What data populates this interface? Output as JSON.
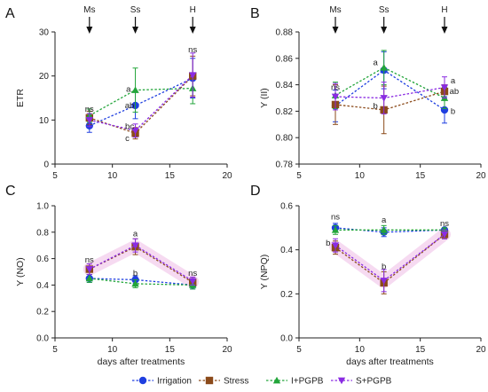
{
  "colors": {
    "Irrigation": "#1f3fe0",
    "Stress": "#8b4a1a",
    "I+PGPB": "#22a53a",
    "S+PGPB": "#8a2be2",
    "highlight": "#f5d3ee"
  },
  "legend": [
    "Irrigation",
    "Stress",
    "I+PGPB",
    "S+PGPB"
  ],
  "xlabel": "days after treatments",
  "chart_data": [
    {
      "type": "line",
      "panel": "A",
      "ylabel": "ETR",
      "xlim": [
        5,
        20
      ],
      "ylim": [
        0,
        30
      ],
      "xticks": [
        "5",
        "10",
        "15",
        "20"
      ],
      "yticks": [
        "0",
        "10",
        "20",
        "30"
      ],
      "x": [
        8,
        12,
        17
      ],
      "stage_labels": [
        {
          "x": 8,
          "text": "Ms"
        },
        {
          "x": 12,
          "text": "Ss"
        },
        {
          "x": 17,
          "text": "H"
        }
      ],
      "series": [
        {
          "name": "Irrigation",
          "values": [
            8.7,
            13.3,
            19.5
          ],
          "errors": [
            1.5,
            3.0,
            4.5
          ]
        },
        {
          "name": "Stress",
          "values": [
            10.5,
            7.0,
            20.0
          ],
          "errors": [
            1.5,
            1.3,
            4.5
          ]
        },
        {
          "name": "I+PGPB",
          "values": [
            11.0,
            16.8,
            17.2
          ],
          "errors": [
            1.5,
            5.0,
            3.5
          ]
        },
        {
          "name": "S+PGPB",
          "values": [
            10.0,
            7.6,
            20.2
          ],
          "errors": [
            1.5,
            1.5,
            5.0
          ]
        }
      ],
      "annotations": [
        {
          "x": 8,
          "y": 12.5,
          "text": "ns"
        },
        {
          "x": 11.4,
          "y": 17.0,
          "text": "a"
        },
        {
          "x": 11.5,
          "y": 13.3,
          "text": "ab"
        },
        {
          "x": 11.5,
          "y": 8.6,
          "text": "bc"
        },
        {
          "x": 11.3,
          "y": 5.8,
          "text": "c"
        },
        {
          "x": 17,
          "y": 26.0,
          "text": "ns"
        }
      ]
    },
    {
      "type": "line",
      "panel": "B",
      "ylabel": "Y (II)",
      "xlim": [
        5,
        20
      ],
      "ylim": [
        0.78,
        0.88
      ],
      "xticks": [
        "5",
        "10",
        "15",
        "20"
      ],
      "yticks": [
        "0.78",
        "0.80",
        "0.82",
        "0.84",
        "0.86",
        "0.88"
      ],
      "x": [
        8,
        12,
        17
      ],
      "stage_labels": [
        {
          "x": 8,
          "text": "Ms"
        },
        {
          "x": 12,
          "text": "Ss"
        },
        {
          "x": 17,
          "text": "H"
        }
      ],
      "series": [
        {
          "name": "Irrigation",
          "values": [
            0.824,
            0.851,
            0.821
          ],
          "errors": [
            0.012,
            0.014,
            0.01
          ]
        },
        {
          "name": "Stress",
          "values": [
            0.825,
            0.821,
            0.835
          ],
          "errors": [
            0.015,
            0.018,
            0.005
          ]
        },
        {
          "name": "I+PGPB",
          "values": [
            0.832,
            0.853,
            0.83
          ],
          "errors": [
            0.01,
            0.013,
            0.008
          ]
        },
        {
          "name": "S+PGPB",
          "values": [
            0.831,
            0.83,
            0.838
          ],
          "errors": [
            0.01,
            0.012,
            0.008
          ]
        }
      ],
      "annotations": [
        {
          "x": 8,
          "y": 0.838,
          "text": "ns"
        },
        {
          "x": 11.3,
          "y": 0.857,
          "text": "a"
        },
        {
          "x": 11.3,
          "y": 0.824,
          "text": "b"
        },
        {
          "x": 17.7,
          "y": 0.843,
          "text": "a"
        },
        {
          "x": 17.8,
          "y": 0.835,
          "text": "ab"
        },
        {
          "x": 17.7,
          "y": 0.82,
          "text": "b"
        }
      ]
    },
    {
      "type": "line",
      "panel": "C",
      "ylabel": "Y (NO)",
      "xlim": [
        5,
        20
      ],
      "ylim": [
        0.0,
        1.0
      ],
      "xticks": [
        "5",
        "10",
        "15",
        "20"
      ],
      "yticks": [
        "0.0",
        "0.2",
        "0.4",
        "0.6",
        "0.8",
        "1.0"
      ],
      "x": [
        8,
        12,
        17
      ],
      "series": [
        {
          "name": "Irrigation",
          "values": [
            0.45,
            0.44,
            0.4
          ],
          "errors": [
            0.03,
            0.03,
            0.03
          ]
        },
        {
          "name": "Stress",
          "values": [
            0.52,
            0.69,
            0.42
          ],
          "errors": [
            0.04,
            0.06,
            0.03
          ]
        },
        {
          "name": "I+PGPB",
          "values": [
            0.45,
            0.41,
            0.4
          ],
          "errors": [
            0.03,
            0.03,
            0.03
          ]
        },
        {
          "name": "S+PGPB",
          "values": [
            0.52,
            0.7,
            0.43
          ],
          "errors": [
            0.04,
            0.05,
            0.03
          ]
        }
      ],
      "annotations": [
        {
          "x": 8,
          "y": 0.59,
          "text": "ns"
        },
        {
          "x": 12,
          "y": 0.79,
          "text": "a"
        },
        {
          "x": 12,
          "y": 0.49,
          "text": "b"
        },
        {
          "x": 17,
          "y": 0.49,
          "text": "ns"
        }
      ]
    },
    {
      "type": "line",
      "panel": "D",
      "ylabel": "Y (NPQ)",
      "xlim": [
        5,
        20
      ],
      "ylim": [
        0.0,
        0.6
      ],
      "xticks": [
        "5",
        "10",
        "15",
        "20"
      ],
      "yticks": [
        "0.0",
        "0.2",
        "0.4",
        "0.6"
      ],
      "x": [
        8,
        12,
        17
      ],
      "series": [
        {
          "name": "Irrigation",
          "values": [
            0.5,
            0.48,
            0.49
          ],
          "errors": [
            0.02,
            0.02,
            0.01
          ]
        },
        {
          "name": "Stress",
          "values": [
            0.41,
            0.25,
            0.47
          ],
          "errors": [
            0.03,
            0.05,
            0.02
          ]
        },
        {
          "name": "I+PGPB",
          "values": [
            0.49,
            0.49,
            0.49
          ],
          "errors": [
            0.02,
            0.02,
            0.01
          ]
        },
        {
          "name": "S+PGPB",
          "values": [
            0.42,
            0.26,
            0.47
          ],
          "errors": [
            0.03,
            0.05,
            0.02
          ]
        }
      ],
      "annotations": [
        {
          "x": 8,
          "y": 0.55,
          "text": "ns"
        },
        {
          "x": 12,
          "y": 0.535,
          "text": "a"
        },
        {
          "x": 7.4,
          "y": 0.43,
          "text": "b"
        },
        {
          "x": 12,
          "y": 0.325,
          "text": "b"
        },
        {
          "x": 17,
          "y": 0.52,
          "text": "ns"
        }
      ]
    }
  ]
}
